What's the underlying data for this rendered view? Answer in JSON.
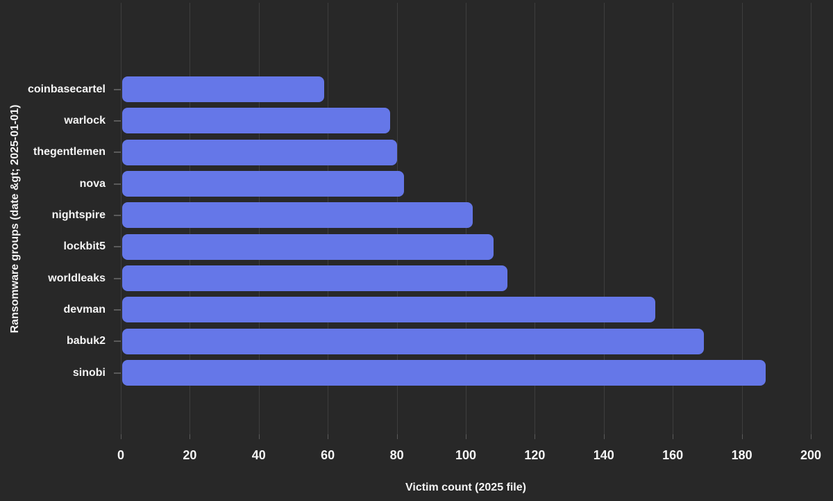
{
  "chart_data": {
    "type": "bar",
    "orientation": "horizontal",
    "title": "",
    "xlabel": "Victim count (2025 file)",
    "ylabel": "Ransomware groups (date &gt; 2025-01-01)",
    "categories": [
      "coinbasecartel",
      "warlock",
      "thegentlemen",
      "nova",
      "nightspire",
      "lockbit5",
      "worldleaks",
      "devman",
      "babuk2",
      "sinobi"
    ],
    "values": [
      59,
      78,
      80,
      82,
      102,
      108,
      112,
      155,
      169,
      187
    ],
    "xticks": [
      0,
      20,
      40,
      60,
      80,
      100,
      120,
      140,
      160,
      180,
      200
    ],
    "xlim": [
      0,
      200
    ],
    "grid": "vertical-gridlines-on",
    "legend": "none",
    "colors": {
      "background": "#282828",
      "bar": "#6577e8",
      "grid": "#3e3e3e",
      "tick": "#5a5a5a",
      "text": "#f5f5f5"
    }
  }
}
